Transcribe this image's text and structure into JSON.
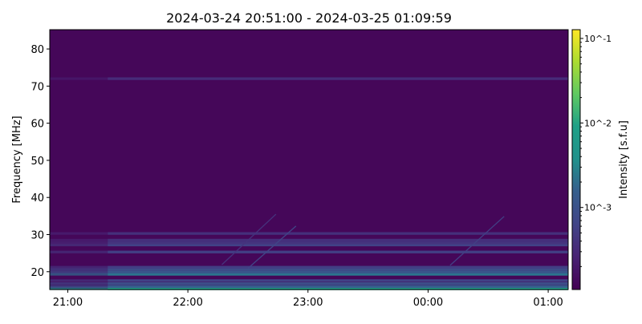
{
  "chart_data": {
    "type": "heatmap",
    "title": "2024-03-24 20:51:00 - 2024-03-25 01:09:59",
    "xlabel": "",
    "ylabel": "Frequency [MHz]",
    "colorbar_label": "Intensity [s.f.u]",
    "colormap": "viridis",
    "color_scale": "log",
    "clim": [
      0.000107,
      0.127
    ],
    "colorbar_ticks": [
      "10^-1",
      "10^-2",
      "10^-3"
    ],
    "colorbar_tick_values": [
      0.1,
      0.01,
      0.001
    ],
    "x_start": "2024-03-24 20:51:00",
    "x_end": "2024-03-25 01:09:59",
    "x_ticks": [
      "21:00",
      "22:00",
      "23:00",
      "00:00",
      "01:00"
    ],
    "x_tick_minutes_after_2100": [
      0,
      60,
      120,
      180,
      240
    ],
    "ylim": [
      15.2,
      85.2
    ],
    "y_ticks": [
      20,
      30,
      40,
      50,
      60,
      70,
      80
    ],
    "background_intensity": 0.00012,
    "bands": [
      {
        "freq": 15.4,
        "intensity": 0.004
      },
      {
        "freq": 16.0,
        "intensity": 0.0006
      },
      {
        "freq": 16.8,
        "intensity": 0.0004
      },
      {
        "freq": 17.6,
        "intensity": 0.0003
      },
      {
        "freq": 19.3,
        "intensity": 0.0012
      },
      {
        "freq": 19.9,
        "intensity": 0.0005
      },
      {
        "freq": 20.6,
        "intensity": 0.0004
      },
      {
        "freq": 21.2,
        "intensity": 0.00028
      },
      {
        "freq": 25.3,
        "intensity": 0.00028
      },
      {
        "freq": 27.2,
        "intensity": 0.0003
      },
      {
        "freq": 27.8,
        "intensity": 0.00022
      },
      {
        "freq": 28.5,
        "intensity": 0.0002
      },
      {
        "freq": 30.3,
        "intensity": 0.0002
      },
      {
        "freq": 72.0,
        "intensity": 0.00018
      }
    ],
    "bursts": [
      {
        "start": "22:17",
        "end": "22:44",
        "freq_start": 21.9,
        "freq_end": 35.5,
        "intensity": 0.0003
      },
      {
        "start": "22:30",
        "end": "22:54",
        "freq_start": 20.9,
        "freq_end": 32.3,
        "intensity": 0.00045
      },
      {
        "start": "00:11",
        "end": "00:38",
        "freq_start": 21.7,
        "freq_end": 34.9,
        "intensity": 0.0004
      }
    ]
  }
}
